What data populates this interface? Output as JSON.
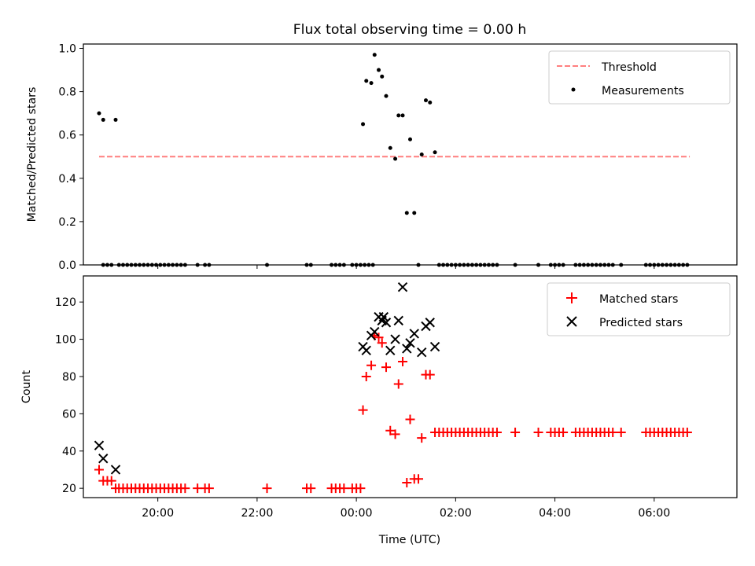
{
  "figure": {
    "title": "Flux total observing time = 0.00 h",
    "xlabel": "Time (UTC)"
  },
  "colors": {
    "threshold": "#ff7f7f",
    "measurements": "#000000",
    "matched": "#ff0000",
    "predicted": "#000000"
  },
  "chart_data": [
    {
      "type": "scatter",
      "ylabel": "Matched/Predicted stars",
      "xlim": [
        "18:30",
        "07:40"
      ],
      "ylim": [
        0,
        1.02
      ],
      "x_ticks": [
        "20:00",
        "22:00",
        "00:00",
        "02:00",
        "04:00",
        "06:00"
      ],
      "y_ticks": [
        "0.0",
        "0.2",
        "0.4",
        "0.6",
        "0.8",
        "1.0"
      ],
      "legend": {
        "position": "upper right",
        "entries": [
          "Threshold",
          "Measurements"
        ]
      },
      "series": [
        {
          "name": "Threshold",
          "style": "dashed-line",
          "points": [
            {
              "x": "18:49",
              "y": 0.5
            },
            {
              "x": "06:43",
              "y": 0.5
            }
          ]
        },
        {
          "name": "Measurements",
          "style": "dot",
          "points": [
            {
              "x": "18:49",
              "y": 0.7
            },
            {
              "x": "18:54",
              "y": 0.67
            },
            {
              "x": "19:09",
              "y": 0.67
            },
            {
              "x": "00:08",
              "y": 0.65
            },
            {
              "x": "00:12",
              "y": 0.85
            },
            {
              "x": "00:18",
              "y": 0.84
            },
            {
              "x": "00:22",
              "y": 0.97
            },
            {
              "x": "00:27",
              "y": 0.9
            },
            {
              "x": "00:31",
              "y": 0.87
            },
            {
              "x": "00:36",
              "y": 0.78
            },
            {
              "x": "00:41",
              "y": 0.54
            },
            {
              "x": "00:47",
              "y": 0.49
            },
            {
              "x": "00:51",
              "y": 0.69
            },
            {
              "x": "00:56",
              "y": 0.69
            },
            {
              "x": "01:01",
              "y": 0.24
            },
            {
              "x": "01:05",
              "y": 0.58
            },
            {
              "x": "01:10",
              "y": 0.24
            },
            {
              "x": "01:19",
              "y": 0.51
            },
            {
              "x": "01:24",
              "y": 0.76
            },
            {
              "x": "01:29",
              "y": 0.75
            },
            {
              "x": "01:35",
              "y": 0.52
            },
            {
              "x": "18:54",
              "y": 0
            },
            {
              "x": "18:59",
              "y": 0
            },
            {
              "x": "19:04",
              "y": 0
            },
            {
              "x": "19:13",
              "y": 0
            },
            {
              "x": "19:18",
              "y": 0
            },
            {
              "x": "19:23",
              "y": 0
            },
            {
              "x": "19:28",
              "y": 0
            },
            {
              "x": "19:33",
              "y": 0
            },
            {
              "x": "19:38",
              "y": 0
            },
            {
              "x": "19:43",
              "y": 0
            },
            {
              "x": "19:48",
              "y": 0
            },
            {
              "x": "19:53",
              "y": 0
            },
            {
              "x": "19:58",
              "y": 0
            },
            {
              "x": "20:03",
              "y": 0
            },
            {
              "x": "20:08",
              "y": 0
            },
            {
              "x": "20:13",
              "y": 0
            },
            {
              "x": "20:18",
              "y": 0
            },
            {
              "x": "20:23",
              "y": 0
            },
            {
              "x": "20:28",
              "y": 0
            },
            {
              "x": "20:33",
              "y": 0
            },
            {
              "x": "20:48",
              "y": 0
            },
            {
              "x": "20:57",
              "y": 0
            },
            {
              "x": "21:02",
              "y": 0
            },
            {
              "x": "22:12",
              "y": 0
            },
            {
              "x": "23:00",
              "y": 0
            },
            {
              "x": "23:05",
              "y": 0
            },
            {
              "x": "23:30",
              "y": 0
            },
            {
              "x": "23:35",
              "y": 0
            },
            {
              "x": "23:40",
              "y": 0
            },
            {
              "x": "23:45",
              "y": 0
            },
            {
              "x": "23:55",
              "y": 0
            },
            {
              "x": "00:00",
              "y": 0
            },
            {
              "x": "00:05",
              "y": 0
            },
            {
              "x": "00:10",
              "y": 0
            },
            {
              "x": "00:15",
              "y": 0
            },
            {
              "x": "00:20",
              "y": 0
            },
            {
              "x": "01:15",
              "y": 0
            },
            {
              "x": "01:40",
              "y": 0
            },
            {
              "x": "01:45",
              "y": 0
            },
            {
              "x": "01:50",
              "y": 0
            },
            {
              "x": "01:55",
              "y": 0
            },
            {
              "x": "02:00",
              "y": 0
            },
            {
              "x": "02:05",
              "y": 0
            },
            {
              "x": "02:10",
              "y": 0
            },
            {
              "x": "02:15",
              "y": 0
            },
            {
              "x": "02:20",
              "y": 0
            },
            {
              "x": "02:25",
              "y": 0
            },
            {
              "x": "02:30",
              "y": 0
            },
            {
              "x": "02:35",
              "y": 0
            },
            {
              "x": "02:40",
              "y": 0
            },
            {
              "x": "02:45",
              "y": 0
            },
            {
              "x": "02:50",
              "y": 0
            },
            {
              "x": "03:12",
              "y": 0
            },
            {
              "x": "03:40",
              "y": 0
            },
            {
              "x": "03:55",
              "y": 0
            },
            {
              "x": "04:00",
              "y": 0
            },
            {
              "x": "04:05",
              "y": 0
            },
            {
              "x": "04:10",
              "y": 0
            },
            {
              "x": "04:25",
              "y": 0
            },
            {
              "x": "04:30",
              "y": 0
            },
            {
              "x": "04:35",
              "y": 0
            },
            {
              "x": "04:40",
              "y": 0
            },
            {
              "x": "04:45",
              "y": 0
            },
            {
              "x": "04:50",
              "y": 0
            },
            {
              "x": "04:55",
              "y": 0
            },
            {
              "x": "05:00",
              "y": 0
            },
            {
              "x": "05:05",
              "y": 0
            },
            {
              "x": "05:10",
              "y": 0
            },
            {
              "x": "05:20",
              "y": 0
            },
            {
              "x": "05:50",
              "y": 0
            },
            {
              "x": "05:55",
              "y": 0
            },
            {
              "x": "06:00",
              "y": 0
            },
            {
              "x": "06:05",
              "y": 0
            },
            {
              "x": "06:10",
              "y": 0
            },
            {
              "x": "06:15",
              "y": 0
            },
            {
              "x": "06:20",
              "y": 0
            },
            {
              "x": "06:25",
              "y": 0
            },
            {
              "x": "06:30",
              "y": 0
            },
            {
              "x": "06:35",
              "y": 0
            },
            {
              "x": "06:40",
              "y": 0
            }
          ]
        }
      ]
    },
    {
      "type": "scatter",
      "ylabel": "Count",
      "xlim": [
        "18:30",
        "07:40"
      ],
      "ylim": [
        15,
        134
      ],
      "x_ticks": [
        "20:00",
        "22:00",
        "00:00",
        "02:00",
        "04:00",
        "06:00"
      ],
      "y_ticks": [
        "20",
        "40",
        "60",
        "80",
        "100",
        "120"
      ],
      "legend": {
        "position": "upper right",
        "entries": [
          "Matched stars",
          "Predicted stars"
        ]
      },
      "series": [
        {
          "name": "Matched stars",
          "marker": "plus",
          "points": [
            {
              "x": "18:49",
              "y": 30
            },
            {
              "x": "18:54",
              "y": 24
            },
            {
              "x": "18:59",
              "y": 24
            },
            {
              "x": "19:04",
              "y": 24
            },
            {
              "x": "19:09",
              "y": 20
            },
            {
              "x": "19:13",
              "y": 20
            },
            {
              "x": "19:18",
              "y": 20
            },
            {
              "x": "19:23",
              "y": 20
            },
            {
              "x": "19:28",
              "y": 20
            },
            {
              "x": "19:33",
              "y": 20
            },
            {
              "x": "19:38",
              "y": 20
            },
            {
              "x": "19:43",
              "y": 20
            },
            {
              "x": "19:48",
              "y": 20
            },
            {
              "x": "19:53",
              "y": 20
            },
            {
              "x": "19:58",
              "y": 20
            },
            {
              "x": "20:03",
              "y": 20
            },
            {
              "x": "20:08",
              "y": 20
            },
            {
              "x": "20:13",
              "y": 20
            },
            {
              "x": "20:18",
              "y": 20
            },
            {
              "x": "20:23",
              "y": 20
            },
            {
              "x": "20:28",
              "y": 20
            },
            {
              "x": "20:33",
              "y": 20
            },
            {
              "x": "20:48",
              "y": 20
            },
            {
              "x": "20:57",
              "y": 20
            },
            {
              "x": "21:02",
              "y": 20
            },
            {
              "x": "22:12",
              "y": 20
            },
            {
              "x": "23:00",
              "y": 20
            },
            {
              "x": "23:05",
              "y": 20
            },
            {
              "x": "23:30",
              "y": 20
            },
            {
              "x": "23:35",
              "y": 20
            },
            {
              "x": "23:40",
              "y": 20
            },
            {
              "x": "23:45",
              "y": 20
            },
            {
              "x": "23:55",
              "y": 20
            },
            {
              "x": "00:00",
              "y": 20
            },
            {
              "x": "00:05",
              "y": 20
            },
            {
              "x": "00:08",
              "y": 62
            },
            {
              "x": "00:12",
              "y": 80
            },
            {
              "x": "00:18",
              "y": 86
            },
            {
              "x": "00:22",
              "y": 102
            },
            {
              "x": "00:27",
              "y": 101
            },
            {
              "x": "00:31",
              "y": 98
            },
            {
              "x": "00:36",
              "y": 85
            },
            {
              "x": "00:41",
              "y": 51
            },
            {
              "x": "00:47",
              "y": 49
            },
            {
              "x": "00:51",
              "y": 76
            },
            {
              "x": "00:56",
              "y": 88
            },
            {
              "x": "01:01",
              "y": 23
            },
            {
              "x": "01:05",
              "y": 57
            },
            {
              "x": "01:10",
              "y": 25
            },
            {
              "x": "01:15",
              "y": 25
            },
            {
              "x": "01:19",
              "y": 47
            },
            {
              "x": "01:24",
              "y": 81
            },
            {
              "x": "01:29",
              "y": 81
            },
            {
              "x": "01:35",
              "y": 50
            },
            {
              "x": "01:40",
              "y": 50
            },
            {
              "x": "01:45",
              "y": 50
            },
            {
              "x": "01:50",
              "y": 50
            },
            {
              "x": "01:55",
              "y": 50
            },
            {
              "x": "02:00",
              "y": 50
            },
            {
              "x": "02:05",
              "y": 50
            },
            {
              "x": "02:10",
              "y": 50
            },
            {
              "x": "02:15",
              "y": 50
            },
            {
              "x": "02:20",
              "y": 50
            },
            {
              "x": "02:25",
              "y": 50
            },
            {
              "x": "02:30",
              "y": 50
            },
            {
              "x": "02:35",
              "y": 50
            },
            {
              "x": "02:40",
              "y": 50
            },
            {
              "x": "02:45",
              "y": 50
            },
            {
              "x": "02:50",
              "y": 50
            },
            {
              "x": "03:12",
              "y": 50
            },
            {
              "x": "03:40",
              "y": 50
            },
            {
              "x": "03:55",
              "y": 50
            },
            {
              "x": "04:00",
              "y": 50
            },
            {
              "x": "04:05",
              "y": 50
            },
            {
              "x": "04:10",
              "y": 50
            },
            {
              "x": "04:25",
              "y": 50
            },
            {
              "x": "04:30",
              "y": 50
            },
            {
              "x": "04:35",
              "y": 50
            },
            {
              "x": "04:40",
              "y": 50
            },
            {
              "x": "04:45",
              "y": 50
            },
            {
              "x": "04:50",
              "y": 50
            },
            {
              "x": "04:55",
              "y": 50
            },
            {
              "x": "05:00",
              "y": 50
            },
            {
              "x": "05:05",
              "y": 50
            },
            {
              "x": "05:10",
              "y": 50
            },
            {
              "x": "05:20",
              "y": 50
            },
            {
              "x": "05:50",
              "y": 50
            },
            {
              "x": "05:55",
              "y": 50
            },
            {
              "x": "06:00",
              "y": 50
            },
            {
              "x": "06:05",
              "y": 50
            },
            {
              "x": "06:10",
              "y": 50
            },
            {
              "x": "06:15",
              "y": 50
            },
            {
              "x": "06:20",
              "y": 50
            },
            {
              "x": "06:25",
              "y": 50
            },
            {
              "x": "06:30",
              "y": 50
            },
            {
              "x": "06:35",
              "y": 50
            },
            {
              "x": "06:40",
              "y": 50
            }
          ]
        },
        {
          "name": "Predicted stars",
          "marker": "x",
          "points": [
            {
              "x": "18:49",
              "y": 43
            },
            {
              "x": "18:54",
              "y": 36
            },
            {
              "x": "19:09",
              "y": 30
            },
            {
              "x": "00:08",
              "y": 96
            },
            {
              "x": "00:12",
              "y": 94
            },
            {
              "x": "00:18",
              "y": 102
            },
            {
              "x": "00:22",
              "y": 104
            },
            {
              "x": "00:27",
              "y": 112
            },
            {
              "x": "00:31",
              "y": 110
            },
            {
              "x": "00:33",
              "y": 112
            },
            {
              "x": "00:36",
              "y": 109
            },
            {
              "x": "00:41",
              "y": 94
            },
            {
              "x": "00:47",
              "y": 100
            },
            {
              "x": "00:51",
              "y": 110
            },
            {
              "x": "00:56",
              "y": 128
            },
            {
              "x": "01:01",
              "y": 95
            },
            {
              "x": "01:05",
              "y": 98
            },
            {
              "x": "01:10",
              "y": 103
            },
            {
              "x": "01:19",
              "y": 93
            },
            {
              "x": "01:24",
              "y": 107
            },
            {
              "x": "01:29",
              "y": 109
            },
            {
              "x": "01:35",
              "y": 96
            }
          ]
        }
      ]
    }
  ]
}
